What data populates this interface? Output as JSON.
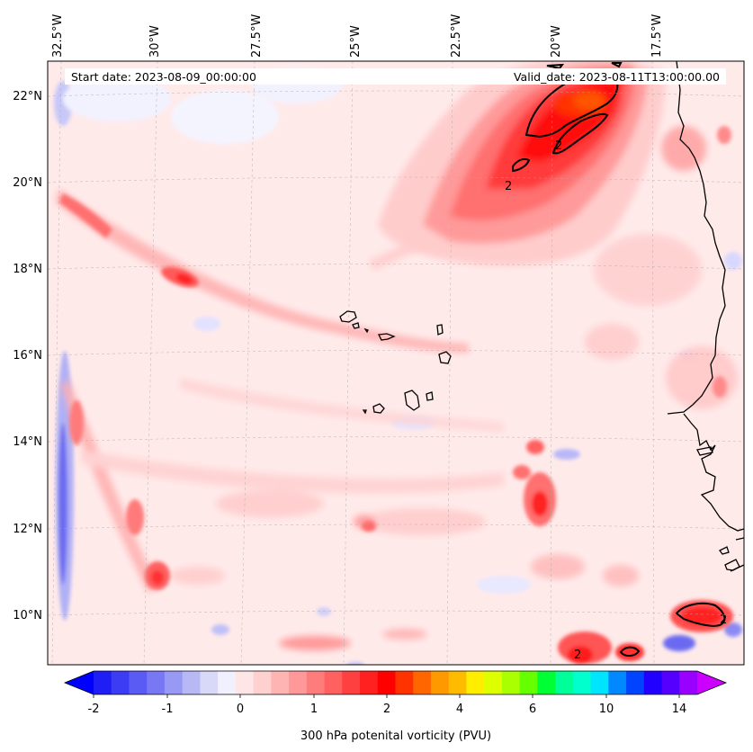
{
  "map": {
    "start_date": "Start date: 2023-08-09_00:00:00",
    "valid_date": "Valid_date: 2023-08-11T13:00:00.00",
    "lon_labels": [
      "32.5°W",
      "30°W",
      "27.5°W",
      "25°W",
      "22.5°W",
      "20°W",
      "17.5°W"
    ],
    "lat_labels": [
      "22°N",
      "20°N",
      "18°N",
      "16°N",
      "14°N",
      "12°N",
      "10°N"
    ],
    "contour_label": "2",
    "features": [
      "Cape Verde islands",
      "West African coastline",
      "2 PVU contour"
    ]
  },
  "colorbar": {
    "label": "300 hPa potenital vorticity (PVU)",
    "ticks": [
      "-2",
      "-1",
      "0",
      "1",
      "2",
      "4",
      "6",
      "10",
      "14"
    ],
    "colors": [
      "#0000ff",
      "#1f1ff5",
      "#3c3cf5",
      "#5a5af5",
      "#7878f5",
      "#9898f5",
      "#b8b8f5",
      "#d8d8f8",
      "#f0f0ff",
      "#ffe6e6",
      "#ffd0d0",
      "#ffb4b4",
      "#ff9898",
      "#ff7c7c",
      "#ff6060",
      "#ff4040",
      "#ff2020",
      "#ff0000",
      "#ff3300",
      "#ff6600",
      "#ff9900",
      "#ffbb00",
      "#ffee00",
      "#ddff00",
      "#aaff00",
      "#66ff00",
      "#00ff33",
      "#00ff99",
      "#00ffcc",
      "#00e5ff",
      "#0088ff",
      "#0044ff",
      "#2200ff",
      "#5500ff",
      "#9900ff",
      "#cc00ff"
    ]
  }
}
